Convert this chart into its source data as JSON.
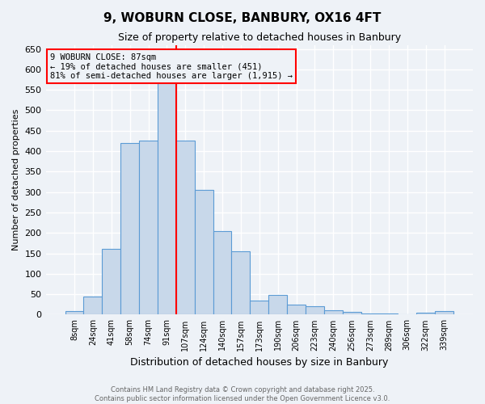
{
  "title": "9, WOBURN CLOSE, BANBURY, OX16 4FT",
  "subtitle": "Size of property relative to detached houses in Banbury",
  "xlabel": "Distribution of detached houses by size in Banbury",
  "ylabel": "Number of detached properties",
  "bar_labels": [
    "8sqm",
    "24sqm",
    "41sqm",
    "58sqm",
    "74sqm",
    "91sqm",
    "107sqm",
    "124sqm",
    "140sqm",
    "157sqm",
    "173sqm",
    "190sqm",
    "206sqm",
    "223sqm",
    "240sqm",
    "256sqm",
    "273sqm",
    "289sqm",
    "306sqm",
    "322sqm",
    "339sqm"
  ],
  "bar_values": [
    8,
    45,
    160,
    420,
    425,
    570,
    425,
    305,
    205,
    155,
    35,
    48,
    25,
    20,
    10,
    6,
    2,
    2,
    0,
    5,
    8
  ],
  "bar_color": "#c8d8ea",
  "bar_edge_color": "#5b9bd5",
  "vline_x": 5.5,
  "vline_color": "red",
  "ylim": [
    0,
    660
  ],
  "yticks": [
    0,
    50,
    100,
    150,
    200,
    250,
    300,
    350,
    400,
    450,
    500,
    550,
    600,
    650
  ],
  "annotation_title": "9 WOBURN CLOSE: 87sqm",
  "annotation_line1": "← 19% of detached houses are smaller (451)",
  "annotation_line2": "81% of semi-detached houses are larger (1,915) →",
  "footer1": "Contains HM Land Registry data © Crown copyright and database right 2025.",
  "footer2": "Contains public sector information licensed under the Open Government Licence v3.0.",
  "background_color": "#eef2f7",
  "grid_color": "#d8e4f0"
}
